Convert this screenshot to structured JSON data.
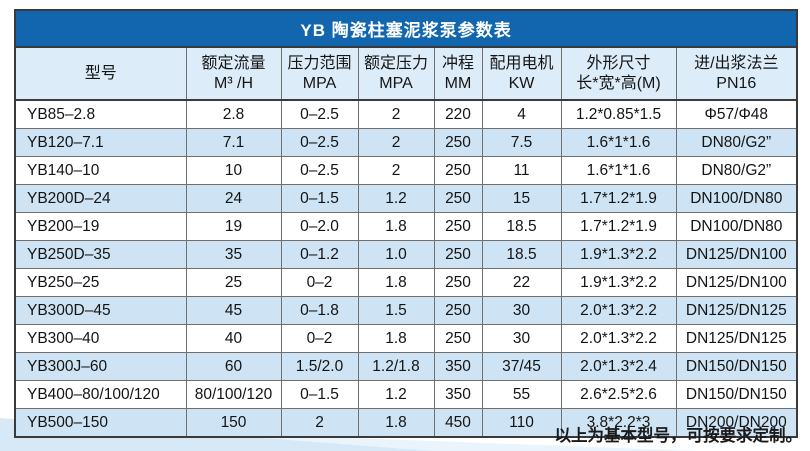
{
  "chart_data": {
    "type": "table",
    "title": "YB 陶瓷柱塞泥浆泵参数表",
    "columns": [
      {
        "label": "型号",
        "unit": ""
      },
      {
        "label": "额定流量",
        "unit": "M³ /H"
      },
      {
        "label": "压力范围",
        "unit": "MPA"
      },
      {
        "label": "额定压力",
        "unit": "MPA"
      },
      {
        "label": "冲程",
        "unit": "MM"
      },
      {
        "label": "配用电机",
        "unit": "KW"
      },
      {
        "label": "外形尺寸",
        "unit": "长*宽*高(M)"
      },
      {
        "label": "进/出浆法兰",
        "unit": "PN16"
      }
    ],
    "rows": [
      [
        "YB85–2.8",
        "2.8",
        "0–2.5",
        "2",
        "220",
        "4",
        "1.2*0.85*1.5",
        "Φ57/Φ48"
      ],
      [
        "YB120–7.1",
        "7.1",
        "0–2.5",
        "2",
        "250",
        "7.5",
        "1.6*1*1.6",
        "DN80/G2”"
      ],
      [
        "YB140–10",
        "10",
        "0–2.5",
        "2",
        "250",
        "11",
        "1.6*1*1.6",
        "DN80/G2”"
      ],
      [
        "YB200D–24",
        "24",
        "0–1.5",
        "1.2",
        "250",
        "15",
        "1.7*1.2*1.9",
        "DN100/DN80"
      ],
      [
        "YB200–19",
        "19",
        "0–2.0",
        "1.8",
        "250",
        "18.5",
        "1.7*1.2*1.9",
        "DN100/DN80"
      ],
      [
        "YB250D–35",
        "35",
        "0–1.2",
        "1.0",
        "250",
        "18.5",
        "1.9*1.3*2.2",
        "DN125/DN100"
      ],
      [
        "YB250–25",
        "25",
        "0–2",
        "1.8",
        "250",
        "22",
        "1.9*1.3*2.2",
        "DN125/DN100"
      ],
      [
        "YB300D–45",
        "45",
        "0–1.8",
        "1.5",
        "250",
        "30",
        "2.0*1.3*2.2",
        "DN125/DN125"
      ],
      [
        "YB300–40",
        "40",
        "0–2",
        "1.8",
        "250",
        "30",
        "2.0*1.3*2.2",
        "DN125/DN125"
      ],
      [
        "YB300J–60",
        "60",
        "1.5/2.0",
        "1.2/1.8",
        "350",
        "37/45",
        "2.0*1.3*2.4",
        "DN150/DN150"
      ],
      [
        "YB400–80/100/120",
        "80/100/120",
        "0–1.5",
        "1.2",
        "350",
        "55",
        "2.6*2.5*2.6",
        "DN150/DN150"
      ],
      [
        "YB500–150",
        "150",
        "2",
        "1.8",
        "450",
        "110",
        "3.8*2.2*3",
        "DN200/DN200"
      ]
    ],
    "footnote": "以上为基本型号，可按要求定制。"
  },
  "colors": {
    "title_bar": "#1166ae",
    "title_text": "#ffffff",
    "header_bg": "#dcecf9",
    "alt_row_bg": "#cee4f4",
    "row_bg": "#ffffff",
    "border_inner": "#6f6f6f",
    "border_outer": "#3a3a3a",
    "wedge": "#d7e9f7"
  }
}
